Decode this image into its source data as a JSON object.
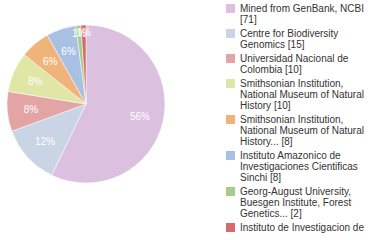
{
  "chart_data": {
    "type": "pie",
    "categories": [
      "Mined from GenBank, NCBI [71]",
      "Centre for Biodiversity Genomics [15]",
      "Universidad Nacional de Colombia [10]",
      "Smithsonian Institution, National Museum of Natural History [10]",
      "Smithsonian Institution, National Museum of Natural History... [8]",
      "Instituto Amazonico de Investigaciones Cientificas Sinchi [8]",
      "Georg-August University, Buesgen Institute, Forest Genetics... [2]",
      "Instituto de Investigacion de"
    ],
    "values": [
      56,
      12,
      8,
      8,
      6,
      6,
      1,
      1
    ],
    "value_labels": [
      "56%",
      "12%",
      "8%",
      "8%",
      "6%",
      "6%",
      "1%",
      "1%"
    ],
    "colors": [
      "#dcc0e0",
      "#c9d5e4",
      "#e2a4a4",
      "#dfe6a6",
      "#f0b47a",
      "#a8c0e2",
      "#a6cc8c",
      "#d66a6a"
    ],
    "data_labels": true,
    "legend": "right"
  }
}
